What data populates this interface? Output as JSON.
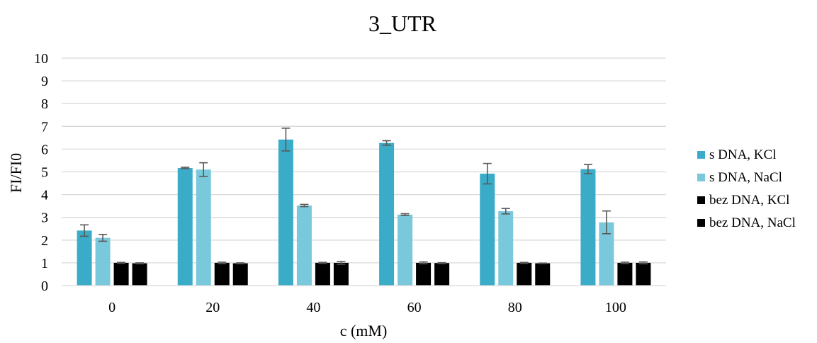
{
  "chart_data": {
    "type": "bar",
    "title": "3_UTR",
    "xlabel": "c (mM)",
    "ylabel": "FI/FI0",
    "categories": [
      "0",
      "20",
      "40",
      "60",
      "80",
      "100"
    ],
    "ylim": [
      0,
      10
    ],
    "yticks": [
      0,
      1,
      2,
      3,
      4,
      5,
      6,
      7,
      8,
      9,
      10
    ],
    "grid": true,
    "legend_position": "right",
    "series": [
      {
        "name": "s DNA, KCl",
        "color": "#3aacc8",
        "values": [
          2.42,
          5.17,
          6.42,
          6.27,
          4.92,
          5.12
        ],
        "errors": [
          0.25,
          0.03,
          0.5,
          0.1,
          0.45,
          0.2
        ]
      },
      {
        "name": "s DNA, NaCl",
        "color": "#7ac8db",
        "values": [
          2.1,
          5.1,
          3.52,
          3.12,
          3.27,
          2.78
        ],
        "errors": [
          0.15,
          0.3,
          0.05,
          0.04,
          0.12,
          0.5
        ]
      },
      {
        "name": "bez DNA, KCl",
        "color": "#000000",
        "values": [
          1.0,
          1.0,
          1.0,
          1.0,
          1.0,
          1.0
        ],
        "errors": [
          0.02,
          0.03,
          0.02,
          0.04,
          0.02,
          0.03
        ]
      },
      {
        "name": "bez DNA, NaCl",
        "color": "#000000",
        "values": [
          0.98,
          0.98,
          1.0,
          0.99,
          0.98,
          1.0
        ],
        "errors": [
          0.02,
          0.02,
          0.06,
          0.02,
          0.01,
          0.04
        ]
      }
    ]
  }
}
